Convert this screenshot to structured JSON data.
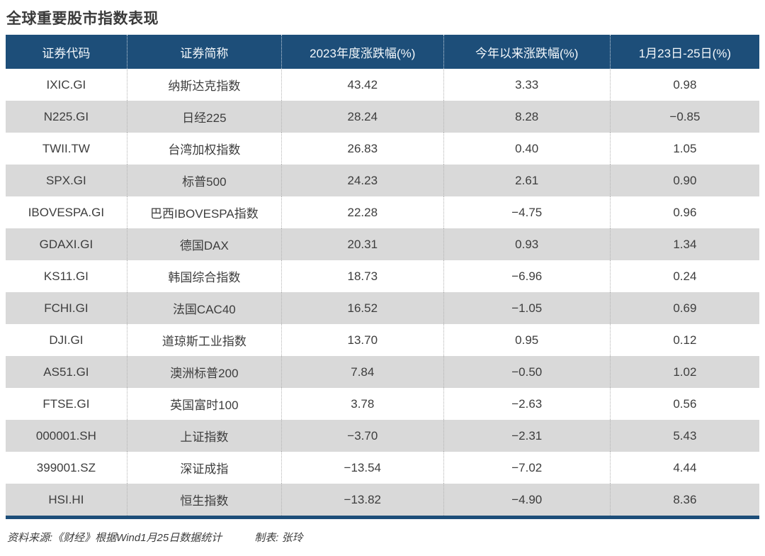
{
  "title": "全球重要股市指数表现",
  "table": {
    "headers": [
      "证券代码",
      "证券简称",
      "2023年度涨跌幅(%)",
      "今年以来涨跌幅(%)",
      "1月23日-25日(%)"
    ],
    "rows": [
      [
        "IXIC.GI",
        "纳斯达克指数",
        "43.42",
        "3.33",
        "0.98"
      ],
      [
        "N225.GI",
        "日经225",
        "28.24",
        "8.28",
        "−0.85"
      ],
      [
        "TWII.TW",
        "台湾加权指数",
        "26.83",
        "0.40",
        "1.05"
      ],
      [
        "SPX.GI",
        "标普500",
        "24.23",
        "2.61",
        "0.90"
      ],
      [
        "IBOVESPA.GI",
        "巴西IBOVESPA指数",
        "22.28",
        "−4.75",
        "0.96"
      ],
      [
        "GDAXI.GI",
        "德国DAX",
        "20.31",
        "0.93",
        "1.34"
      ],
      [
        "KS11.GI",
        "韩国综合指数",
        "18.73",
        "−6.96",
        "0.24"
      ],
      [
        "FCHI.GI",
        "法国CAC40",
        "16.52",
        "−1.05",
        "0.69"
      ],
      [
        "DJI.GI",
        "道琼斯工业指数",
        "13.70",
        "0.95",
        "0.12"
      ],
      [
        "AS51.GI",
        "澳洲标普200",
        "7.84",
        "−0.50",
        "1.02"
      ],
      [
        "FTSE.GI",
        "英国富时100",
        "3.78",
        "−2.63",
        "0.56"
      ],
      [
        "000001.SH",
        "上证指数",
        "−3.70",
        "−2.31",
        "5.43"
      ],
      [
        "399001.SZ",
        "深证成指",
        "−13.54",
        "−7.02",
        "4.44"
      ],
      [
        "HSI.HI",
        "恒生指数",
        "−13.82",
        "−4.90",
        "8.36"
      ]
    ]
  },
  "footer": {
    "source": "资料来源:《财经》根据Wind1月25日数据统计",
    "credit": "制表: 张玲"
  },
  "colors": {
    "header_bg": "#1d4e79",
    "row_alt_bg": "#d9d9d9",
    "bottom_border": "#1d4e79",
    "body_text": "#3d3d3d",
    "header_text": "#f4f8fb"
  },
  "chart_data": {
    "type": "table",
    "title": "全球重要股市指数表现",
    "columns": [
      "证券代码",
      "证券简称",
      "2023年度涨跌幅(%)",
      "今年以来涨跌幅(%)",
      "1月23日-25日(%)"
    ],
    "rows": [
      [
        "IXIC.GI",
        "纳斯达克指数",
        43.42,
        3.33,
        0.98
      ],
      [
        "N225.GI",
        "日经225",
        28.24,
        8.28,
        -0.85
      ],
      [
        "TWII.TW",
        "台湾加权指数",
        26.83,
        0.4,
        1.05
      ],
      [
        "SPX.GI",
        "标普500",
        24.23,
        2.61,
        0.9
      ],
      [
        "IBOVESPA.GI",
        "巴西IBOVESPA指数",
        22.28,
        -4.75,
        0.96
      ],
      [
        "GDAXI.GI",
        "德国DAX",
        20.31,
        0.93,
        1.34
      ],
      [
        "KS11.GI",
        "韩国综合指数",
        18.73,
        -6.96,
        0.24
      ],
      [
        "FCHI.GI",
        "法国CAC40",
        16.52,
        -1.05,
        0.69
      ],
      [
        "DJI.GI",
        "道琼斯工业指数",
        13.7,
        0.95,
        0.12
      ],
      [
        "AS51.GI",
        "澳洲标普200",
        7.84,
        -0.5,
        1.02
      ],
      [
        "FTSE.GI",
        "英国富时100",
        3.78,
        -2.63,
        0.56
      ],
      [
        "000001.SH",
        "上证指数",
        -3.7,
        -2.31,
        5.43
      ],
      [
        "399001.SZ",
        "深证成指",
        -13.54,
        -7.02,
        4.44
      ],
      [
        "HSI.HI",
        "恒生指数",
        -13.82,
        -4.9,
        8.36
      ]
    ],
    "source": "资料来源:《财经》根据Wind1月25日数据统计",
    "credit": "制表: 张玲"
  }
}
